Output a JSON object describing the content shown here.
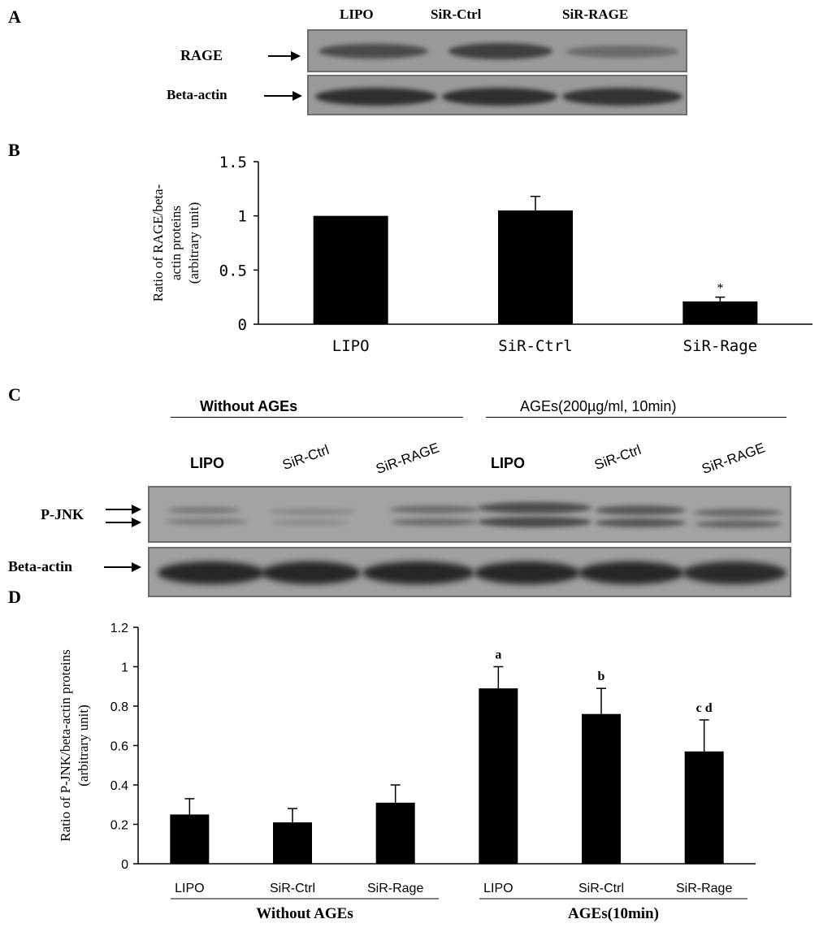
{
  "panels": {
    "a": "A",
    "b": "B",
    "c": "C",
    "d": "D"
  },
  "panel_a": {
    "lanes": [
      "LIPO",
      "SiR-Ctrl",
      "SiR-RAGE"
    ],
    "rows": [
      "RAGE",
      "Beta-actin"
    ]
  },
  "panel_c": {
    "group_without": "Without AGEs",
    "group_ages": "AGEs(200µg/ml, 10min)",
    "lanes": [
      "LIPO",
      "SiR-Ctrl",
      "SiR-RAGE",
      "LIPO",
      "SiR-Ctrl",
      "SiR-RAGE"
    ],
    "rows": [
      "P-JNK",
      "Beta-actin"
    ]
  },
  "chart_data": [
    {
      "type": "bar",
      "panel": "B",
      "categories": [
        "LIPO",
        "SiR-Ctrl",
        "SiR-Rage"
      ],
      "values": [
        1.0,
        1.05,
        0.21
      ],
      "errors": [
        0,
        0.13,
        0.04
      ],
      "annotations": [
        "",
        "",
        "*"
      ],
      "ylabel": "Ratio of RAGE/beta-actin proteins (arbitrary unit)",
      "ylim": [
        0,
        1.5
      ],
      "yticks": [
        "0",
        "0.5",
        "1",
        "1.5"
      ],
      "bar_color": "#000000"
    },
    {
      "type": "bar",
      "panel": "D",
      "categories": [
        "LIPO",
        "SiR-Ctrl",
        "SiR-Rage",
        "LIPO",
        "SiR-Ctrl",
        "SiR-Rage"
      ],
      "groups": [
        {
          "label": "Without AGEs",
          "count": 3
        },
        {
          "label": "AGEs(10min)",
          "count": 3
        }
      ],
      "values": [
        0.25,
        0.21,
        0.31,
        0.89,
        0.76,
        0.57
      ],
      "errors": [
        0.08,
        0.07,
        0.09,
        0.11,
        0.13,
        0.16
      ],
      "annotations": [
        "",
        "",
        "",
        "a",
        "b",
        "c d"
      ],
      "ylabel": "Ratio of P-JNK/beta-actin proteins (arbitrary unit)",
      "ylim": [
        0,
        1.2
      ],
      "yticks": [
        "0",
        "0.2",
        "0.4",
        "0.6",
        "0.8",
        "1",
        "1.2"
      ],
      "bar_color": "#000000"
    }
  ]
}
